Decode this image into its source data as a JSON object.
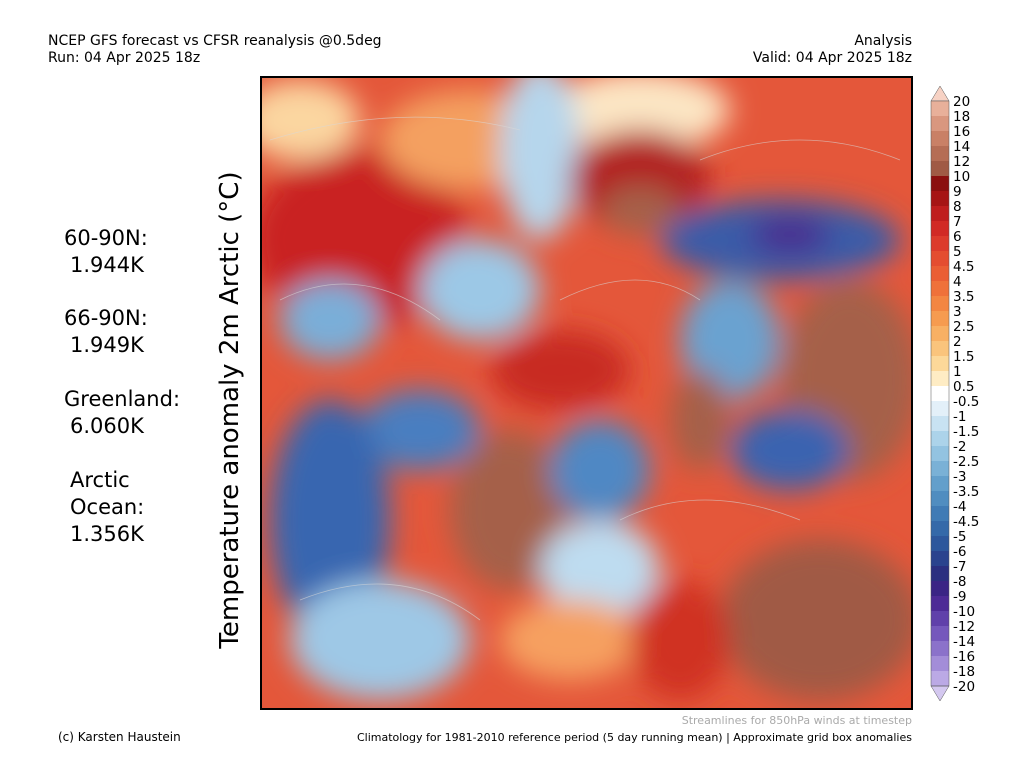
{
  "header": {
    "left": [
      "NCEP GFS forecast vs CFSR reanalysis @0.5deg",
      "Run: 04 Apr 2025 18z"
    ],
    "right": [
      "Analysis",
      "Valid: 04 Apr 2025 18z"
    ]
  },
  "axis_title": "Temperature anomaly 2m Arctic (°C)",
  "stats": [
    {
      "label": "60-90N:",
      "value": "1.944K"
    },
    {
      "label": "66-90N:",
      "value": "1.949K"
    },
    {
      "label": "Greenland:",
      "value": "6.060K"
    },
    {
      "label": "Arctic Ocean:",
      "value": "1.356K"
    }
  ],
  "colorbar": {
    "labels": [
      "20",
      "18",
      "16",
      "14",
      "12",
      "10",
      "9",
      "8",
      "7",
      "6",
      "5",
      "4.5",
      "4",
      "3.5",
      "3",
      "2.5",
      "2",
      "1.5",
      "1",
      "0.5",
      "-0.5",
      "-1",
      "-1.5",
      "-2",
      "-2.5",
      "-3",
      "-3.5",
      "-4",
      "-4.5",
      "-5",
      "-6",
      "-7",
      "-8",
      "-9",
      "-10",
      "-12",
      "-14",
      "-16",
      "-18",
      "-20"
    ],
    "colors": [
      "#f7d2c4",
      "#e8b09a",
      "#d9977f",
      "#c98066",
      "#b56d55",
      "#a05a45",
      "#8b0f0f",
      "#a61515",
      "#bf1e1e",
      "#d12a25",
      "#dc3b2c",
      "#e44d30",
      "#ea5e34",
      "#ef713a",
      "#f38642",
      "#f69b50",
      "#f8b064",
      "#fac47c",
      "#fcd899",
      "#feecc4",
      "#ffffff",
      "#e3f0f9",
      "#c8e2f2",
      "#acd3ea",
      "#93c3e1",
      "#7ab1d6",
      "#639fcb",
      "#508dc0",
      "#407bb5",
      "#3469a9",
      "#2d579c",
      "#2a438e",
      "#2b2f80",
      "#3a2485",
      "#4d2a96",
      "#6040aa",
      "#7558bc",
      "#8b72ca",
      "#a38dd8",
      "#bba9e5",
      "#d4c8f0"
    ]
  },
  "footer": {
    "credit": "(c) Karsten Haustein",
    "streamlines": "Streamlines for 850hPa winds at timestep",
    "note": "Climatology for 1981-2010 reference period (5 day running mean) | Approximate grid box anomalies"
  }
}
